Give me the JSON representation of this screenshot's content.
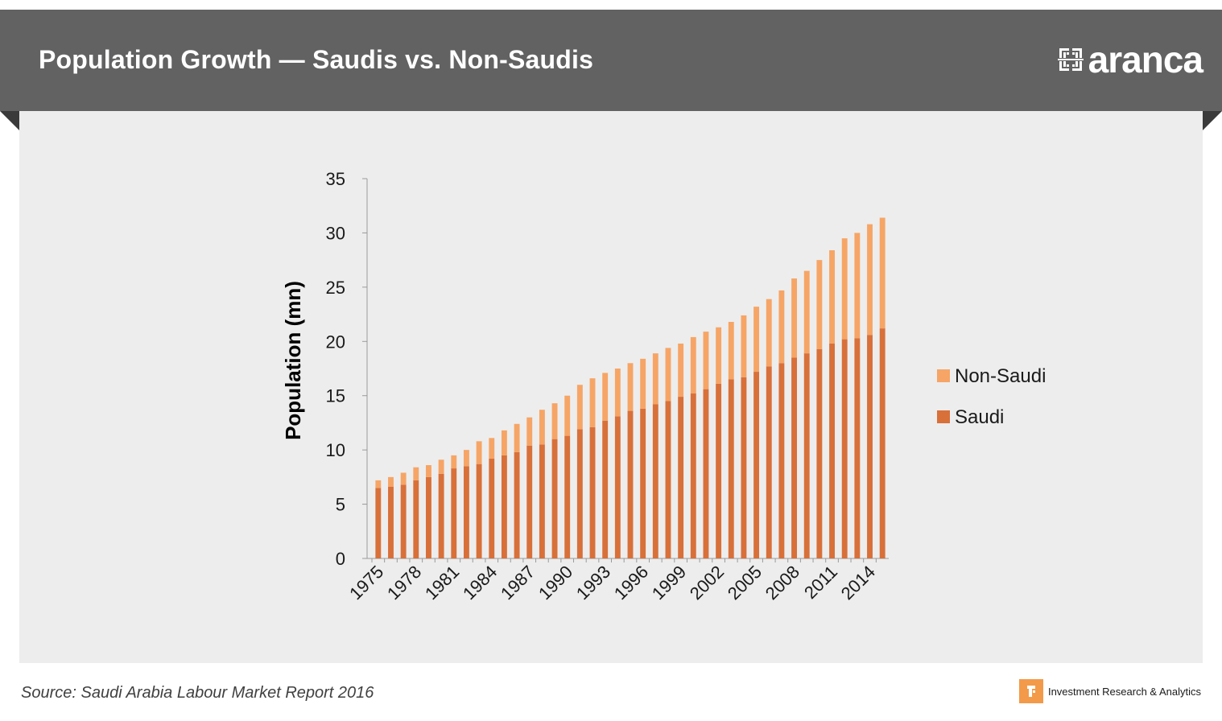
{
  "header": {
    "title": "Population Growth — Saudis vs. Non-Saudis",
    "logo_text": "aranca"
  },
  "footer": {
    "source": "Source: Saudi Arabia Labour Market Report 2016",
    "tagline": "Investment  Research & Analytics"
  },
  "colors": {
    "banner": "#626263",
    "panel": "#ededed",
    "saudi": "#d8703a",
    "non_saudi": "#f6a566",
    "footer_mark": "#f29a4a"
  },
  "icons": {
    "logo_mark": "aranca-grid-logo-icon",
    "footer_mark": "aranca-footer-logo-icon"
  },
  "chart_data": {
    "type": "bar",
    "stacked": true,
    "ylabel": "Population (mn)",
    "xlabel": "",
    "ylim": [
      0,
      35
    ],
    "yticks": [
      0,
      5,
      10,
      15,
      20,
      25,
      30,
      35
    ],
    "grid": false,
    "legend_position": "right",
    "categories": [
      "1975",
      "1976",
      "1977",
      "1978",
      "1979",
      "1980",
      "1981",
      "1982",
      "1983",
      "1984",
      "1985",
      "1986",
      "1987",
      "1988",
      "1989",
      "1990",
      "1991",
      "1992",
      "1993",
      "1994",
      "1995",
      "1996",
      "1997",
      "1998",
      "1999",
      "2000",
      "2001",
      "2002",
      "2003",
      "2004",
      "2005",
      "2006",
      "2007",
      "2008",
      "2009",
      "2010",
      "2011",
      "2012",
      "2013",
      "2014",
      "2015"
    ],
    "xtick_labels": [
      "1975",
      "1978",
      "1981",
      "1984",
      "1987",
      "1990",
      "1993",
      "1996",
      "1999",
      "2002",
      "2005",
      "2008",
      "2011",
      "2014"
    ],
    "series": [
      {
        "name": "Saudi",
        "color": "#d8703a",
        "values": [
          6.5,
          6.6,
          6.8,
          7.2,
          7.5,
          7.8,
          8.3,
          8.5,
          8.7,
          9.2,
          9.5,
          9.8,
          10.4,
          10.5,
          11.0,
          11.3,
          11.9,
          12.1,
          12.7,
          13.1,
          13.6,
          13.8,
          14.2,
          14.5,
          14.9,
          15.2,
          15.6,
          16.1,
          16.5,
          16.7,
          17.2,
          17.7,
          18.0,
          18.5,
          18.9,
          19.3,
          19.8,
          20.2,
          20.3,
          20.6,
          21.2
        ]
      },
      {
        "name": "Non-Saudi",
        "color": "#f6a566",
        "values": [
          0.7,
          0.9,
          1.1,
          1.2,
          1.1,
          1.3,
          1.2,
          1.5,
          2.1,
          1.9,
          2.3,
          2.6,
          2.6,
          3.2,
          3.3,
          3.7,
          4.1,
          4.5,
          4.4,
          4.4,
          4.4,
          4.6,
          4.7,
          4.9,
          4.9,
          5.2,
          5.3,
          5.2,
          5.3,
          5.7,
          6.0,
          6.2,
          6.7,
          7.3,
          7.6,
          8.2,
          8.6,
          9.3,
          9.7,
          10.2,
          10.2
        ]
      }
    ],
    "legend": [
      "Non-Saudi",
      "Saudi"
    ]
  }
}
